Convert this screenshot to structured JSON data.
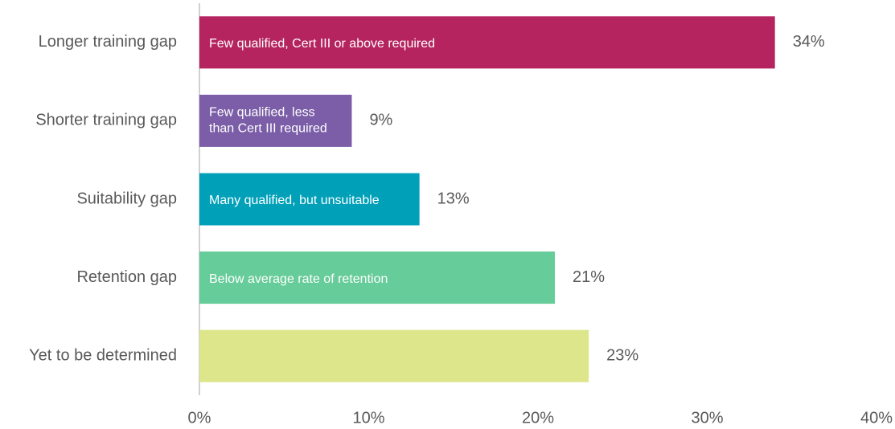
{
  "chart_data": {
    "type": "bar",
    "orientation": "horizontal",
    "categories": [
      "Longer training gap",
      "Shorter training gap",
      "Suitability gap",
      "Retention gap",
      "Yet to be determined"
    ],
    "values": [
      34,
      9,
      13,
      21,
      23
    ],
    "value_labels": [
      "34%",
      "9%",
      "13%",
      "21%",
      "23%"
    ],
    "colors": [
      "#b5245f",
      "#7b5ea7",
      "#00a0b8",
      "#66cc99",
      "#dde68a"
    ],
    "annotations": [
      [
        "Few qualified, Cert III or above required"
      ],
      [
        "Few qualified, less",
        "than Cert III required"
      ],
      [
        "Many qualified, but unsuitable"
      ],
      [
        "Below average rate of retention"
      ],
      null
    ],
    "xlim": [
      0,
      40
    ],
    "xticks": [
      {
        "value": 0,
        "label": "0%"
      },
      {
        "value": 10,
        "label": "10%"
      },
      {
        "value": 20,
        "label": "20%"
      },
      {
        "value": 30,
        "label": "30%"
      },
      {
        "value": 40,
        "label": "40%"
      }
    ],
    "grid": false
  }
}
